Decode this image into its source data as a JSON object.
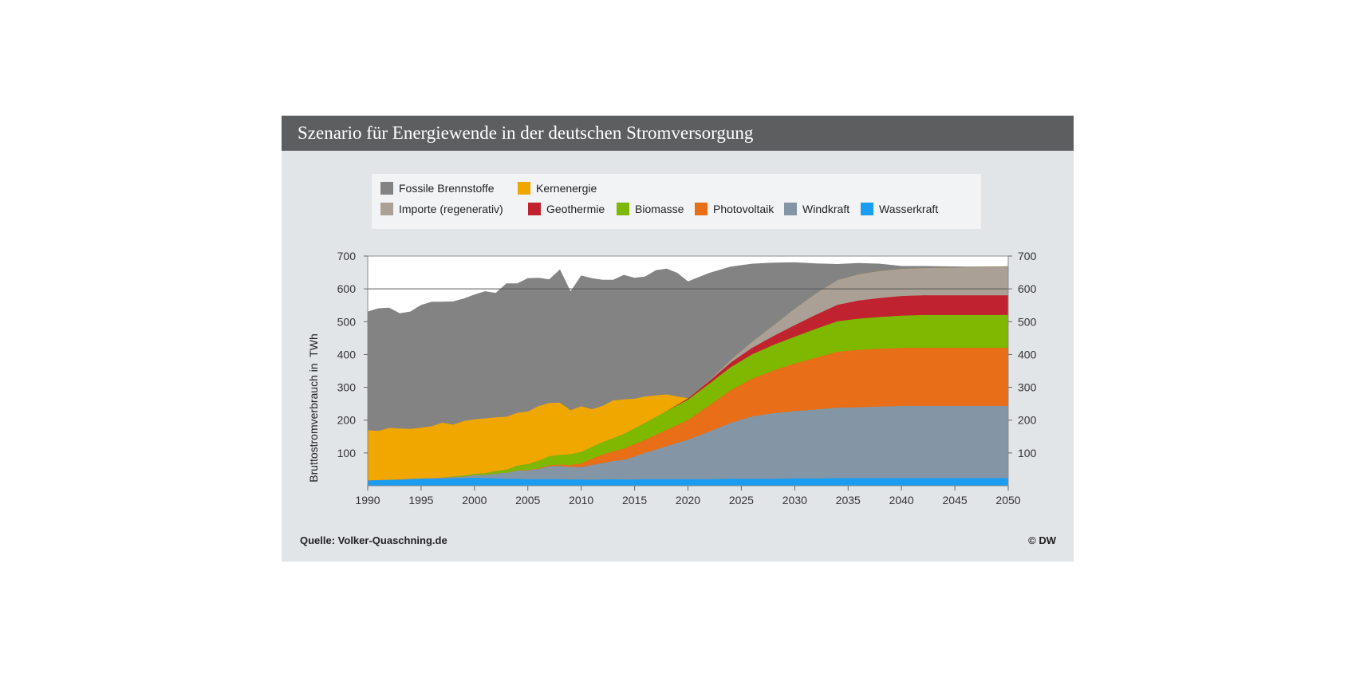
{
  "title": "Szenario für Energiewende in der deutschen Stromversorgung",
  "source": "Quelle: Volker-Quaschning.de",
  "copyright": "© DW",
  "legend": [
    {
      "name": "Fossile Brennstoffe",
      "color": "#838383"
    },
    {
      "name": "Kernenergie",
      "color": "#f0a800"
    },
    {
      "name": "Importe (regenerativ)",
      "color": "#aba095"
    },
    {
      "name": "Geothermie",
      "color": "#c1222f"
    },
    {
      "name": "Biomasse",
      "color": "#7eb800"
    },
    {
      "name": "Photovoltaik",
      "color": "#e86e17"
    },
    {
      "name": "Windkraft",
      "color": "#8496a5"
    },
    {
      "name": "Wasserkraft",
      "color": "#1a9cf0"
    }
  ],
  "chart_data": {
    "type": "area",
    "stacked": true,
    "x": [
      1990,
      1991,
      1992,
      1993,
      1994,
      1995,
      1996,
      1997,
      1998,
      1999,
      2000,
      2001,
      2002,
      2003,
      2004,
      2005,
      2006,
      2007,
      2008,
      2009,
      2010,
      2011,
      2012,
      2013,
      2014,
      2015,
      2016,
      2017,
      2018,
      2019,
      2020,
      2022,
      2024,
      2026,
      2028,
      2030,
      2032,
      2034,
      2036,
      2038,
      2040,
      2042,
      2044,
      2046,
      2048,
      2050
    ],
    "series": [
      {
        "name": "Wasserkraft",
        "color": "#1a9cf0",
        "values": [
          17,
          18,
          19,
          20,
          21,
          22,
          22,
          22,
          23,
          24,
          25,
          24,
          23,
          22,
          22,
          21,
          21,
          21,
          21,
          20,
          20,
          19,
          20,
          21,
          20,
          20,
          21,
          21,
          21,
          21,
          21,
          21,
          22,
          22,
          22,
          23,
          23,
          24,
          24,
          24,
          24,
          24,
          24,
          24,
          24,
          24
        ]
      },
      {
        "name": "Windkraft",
        "color": "#8496a5",
        "values": [
          0,
          0,
          0,
          0,
          1,
          1,
          2,
          3,
          4,
          5,
          8,
          10,
          15,
          18,
          25,
          27,
          30,
          39,
          40,
          38,
          37,
          45,
          50,
          55,
          60,
          70,
          80,
          90,
          100,
          110,
          120,
          145,
          170,
          190,
          200,
          205,
          210,
          215,
          216,
          218,
          220,
          220,
          220,
          220,
          220,
          220
        ]
      },
      {
        "name": "Photovoltaik",
        "color": "#e86e17",
        "values": [
          0,
          0,
          0,
          0,
          0,
          0,
          0,
          0,
          0,
          0,
          0,
          0,
          0,
          0,
          1,
          1,
          2,
          3,
          4,
          6,
          12,
          19,
          26,
          30,
          34,
          38,
          40,
          45,
          50,
          55,
          60,
          80,
          100,
          115,
          130,
          145,
          158,
          170,
          175,
          176,
          177,
          177,
          177,
          177,
          177,
          177
        ]
      },
      {
        "name": "Biomasse",
        "color": "#7eb800",
        "values": [
          0,
          0,
          0,
          0,
          0,
          0,
          0,
          1,
          2,
          3,
          4,
          5,
          8,
          10,
          14,
          18,
          24,
          28,
          30,
          33,
          35,
          36,
          38,
          40,
          45,
          48,
          52,
          55,
          58,
          60,
          62,
          66,
          70,
          74,
          78,
          82,
          88,
          93,
          95,
          97,
          98,
          100,
          100,
          100,
          100,
          100
        ]
      },
      {
        "name": "Geothermie",
        "color": "#c1222f",
        "values": [
          0,
          0,
          0,
          0,
          0,
          0,
          0,
          0,
          0,
          0,
          0,
          0,
          0,
          0,
          0,
          0,
          0,
          0,
          0,
          0,
          0,
          0,
          0,
          0,
          0,
          0,
          0,
          0,
          0,
          2,
          4,
          8,
          14,
          20,
          27,
          35,
          43,
          50,
          55,
          58,
          60,
          60,
          60,
          60,
          60,
          60
        ]
      },
      {
        "name": "Importe (regenerativ)",
        "color": "#aba095",
        "values": [
          0,
          0,
          0,
          0,
          0,
          0,
          0,
          0,
          0,
          0,
          0,
          0,
          0,
          0,
          0,
          0,
          0,
          0,
          0,
          0,
          0,
          0,
          0,
          0,
          0,
          0,
          0,
          0,
          0,
          0,
          0,
          2,
          8,
          18,
          32,
          50,
          65,
          75,
          80,
          82,
          82,
          83,
          84,
          85,
          86,
          87
        ]
      },
      {
        "name": "Kernenergie",
        "color": "#f0a800",
        "values": [
          153,
          150,
          158,
          155,
          152,
          155,
          158,
          167,
          158,
          166,
          166,
          167,
          163,
          161,
          161,
          160,
          166,
          162,
          159,
          134,
          139,
          115,
          110,
          115,
          105,
          90,
          80,
          65,
          50,
          25,
          0,
          0,
          0,
          0,
          0,
          0,
          0,
          0,
          0,
          0,
          0,
          0,
          0,
          0,
          0,
          0
        ]
      },
      {
        "name": "Fossile Brennstoffe",
        "color": "#838383",
        "values": [
          360,
          372,
          365,
          350,
          356,
          372,
          378,
          367,
          374,
          372,
          379,
          386,
          378,
          405,
          393,
          405,
          390,
          375,
          404,
          360,
          397,
          398,
          383,
          366,
          378,
          367,
          364,
          380,
          382,
          375,
          355,
          326,
          283,
          237,
          190,
          140,
          90,
          48,
          33,
          21,
          8,
          5,
          3,
          1,
          0,
          0
        ]
      }
    ],
    "xlim": [
      1990,
      2050
    ],
    "ylim": [
      0,
      700
    ],
    "xticks": [
      1990,
      1995,
      2000,
      2005,
      2010,
      2015,
      2020,
      2025,
      2030,
      2035,
      2040,
      2045,
      2050
    ],
    "yticks": [
      100,
      200,
      300,
      400,
      500,
      600,
      700
    ],
    "ylabel": "Bruttostromverbrauch in  TWh",
    "xlabel": "",
    "grid": false,
    "legend_position": "top",
    "reference_line": 600
  }
}
